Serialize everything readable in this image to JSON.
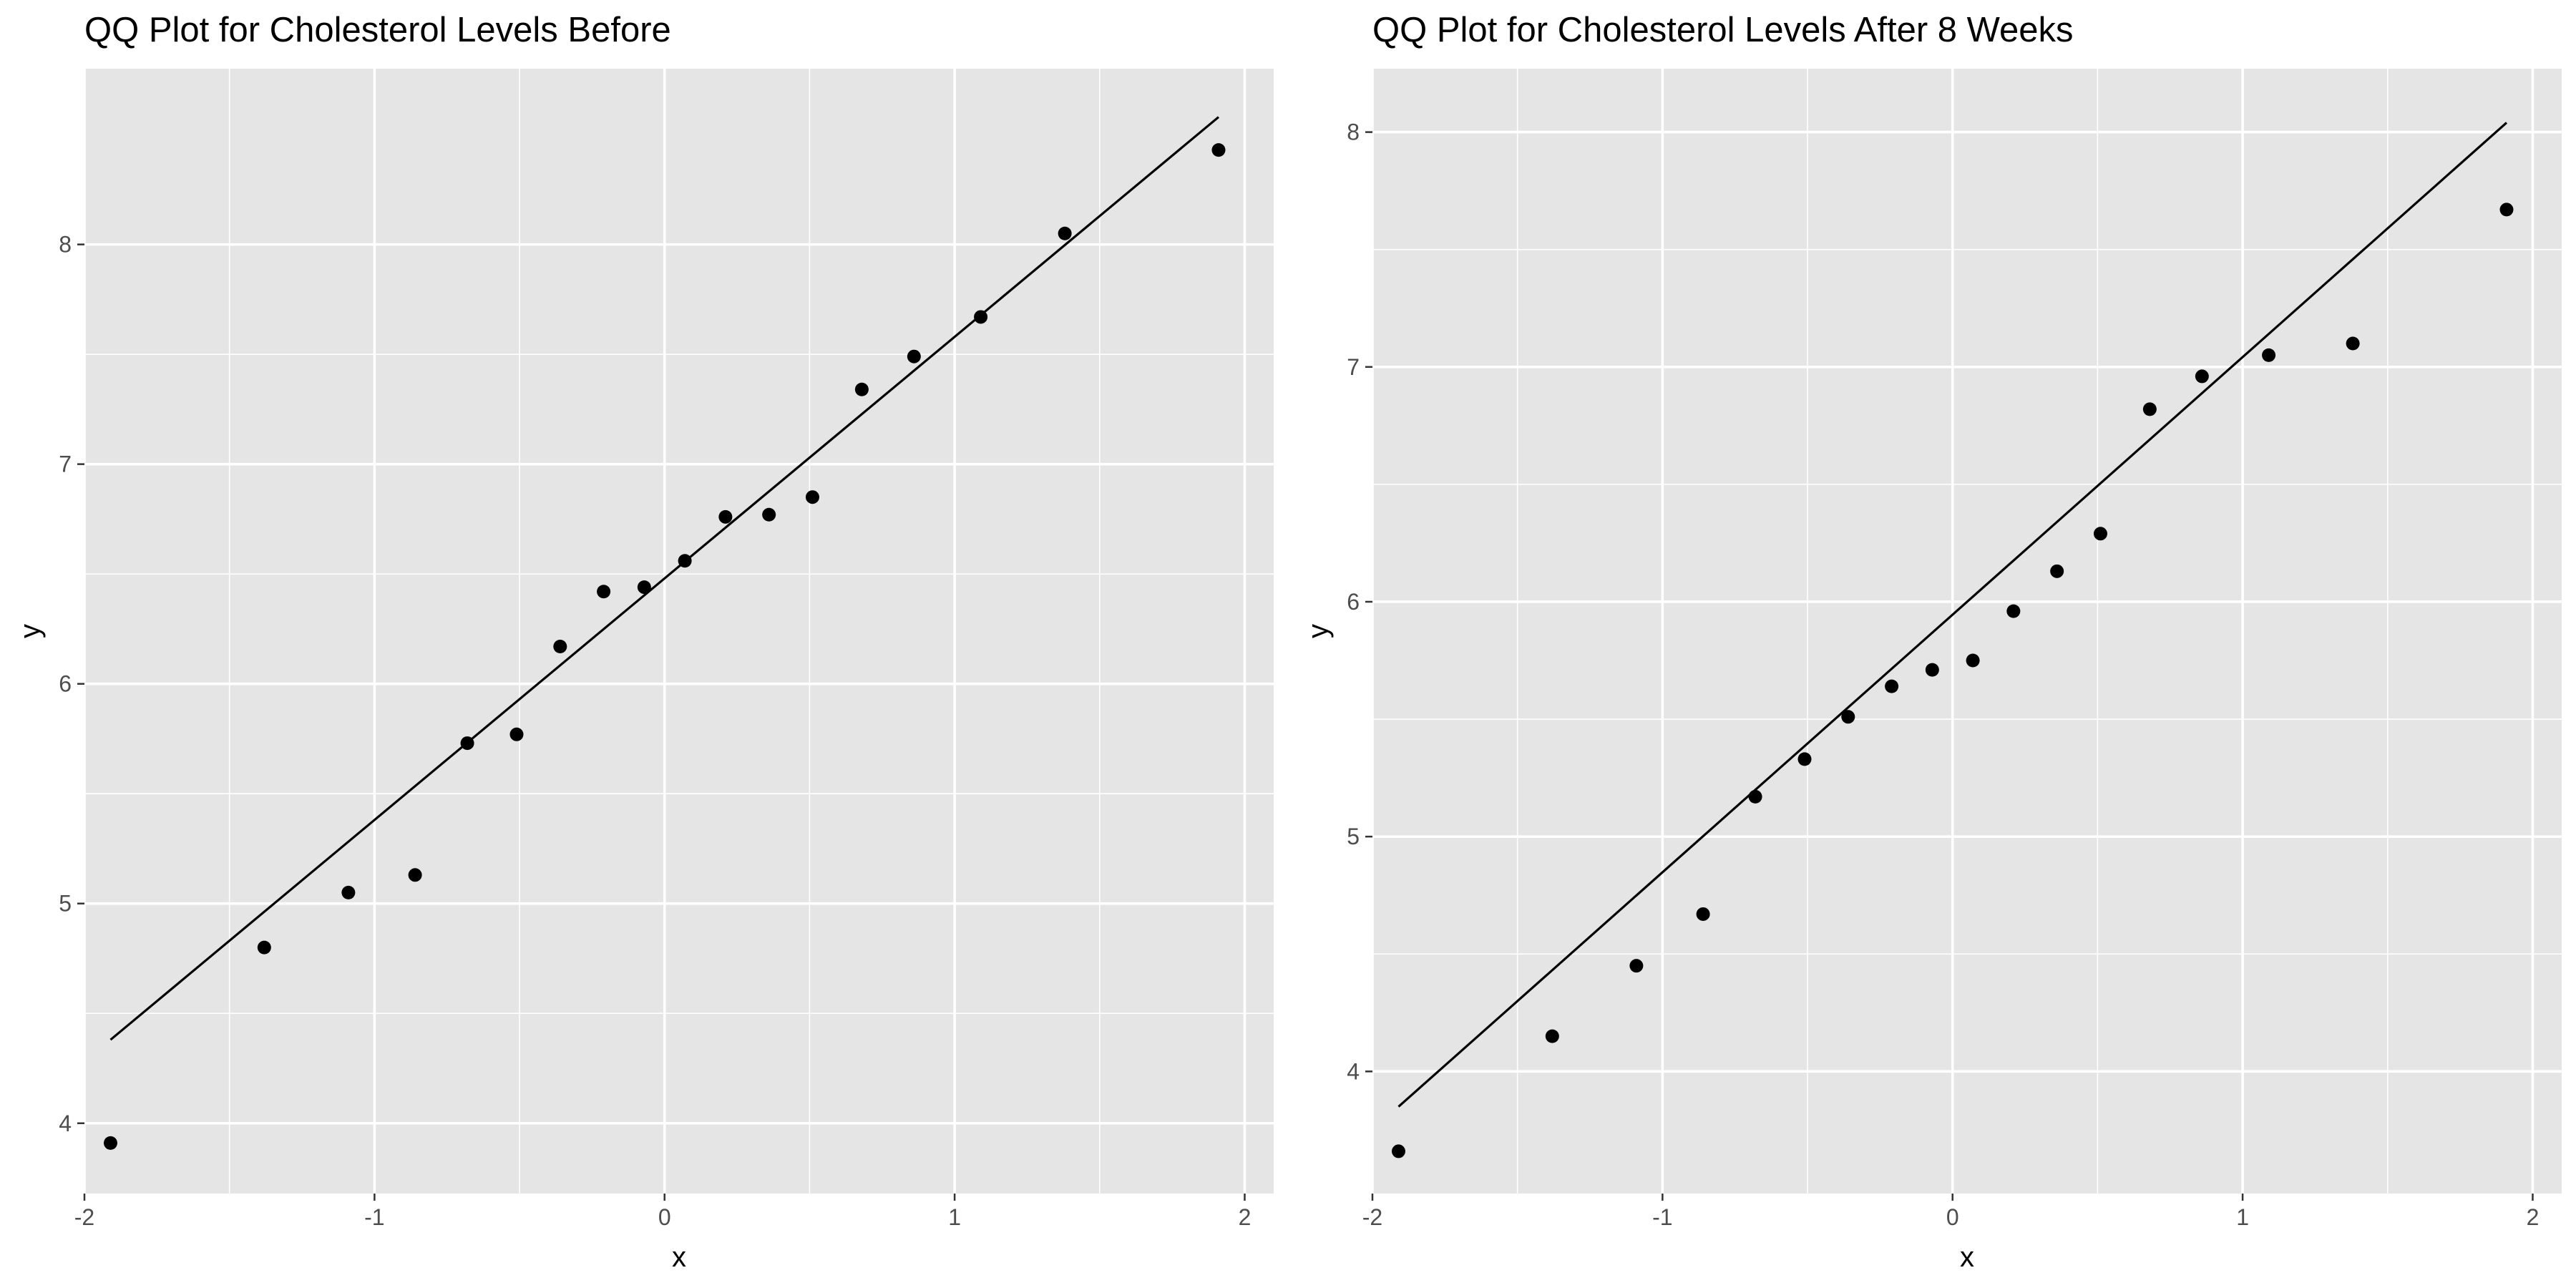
{
  "chart_data": [
    {
      "type": "scatter",
      "title": "QQ Plot for Cholesterol Levels Before",
      "xlabel": "x",
      "ylabel": "y",
      "xlim": [
        -2.0,
        2.1
      ],
      "ylim": [
        3.68,
        8.8
      ],
      "x_ticks": [
        -2,
        -1,
        0,
        1,
        2
      ],
      "x_tick_labels": [
        "-2",
        "-1",
        "0",
        "1",
        "2"
      ],
      "y_ticks": [
        4,
        5,
        6,
        7,
        8
      ],
      "y_tick_labels": [
        "4",
        "5",
        "6",
        "7",
        "8"
      ],
      "grid": true,
      "points": {
        "x": [
          -1.91,
          -1.38,
          -1.09,
          -0.86,
          -0.68,
          -0.51,
          -0.36,
          -0.21,
          -0.07,
          0.07,
          0.21,
          0.36,
          0.51,
          0.68,
          0.86,
          1.09,
          1.38,
          1.91
        ],
        "y": [
          3.91,
          4.8,
          5.05,
          5.13,
          5.73,
          5.77,
          6.17,
          6.42,
          6.44,
          6.56,
          6.76,
          6.77,
          6.85,
          7.34,
          7.49,
          7.67,
          8.05,
          8.43
        ]
      },
      "reference_line": {
        "x": [
          -1.91,
          1.91
        ],
        "y": [
          4.38,
          8.58
        ]
      }
    },
    {
      "type": "scatter",
      "title": "QQ Plot for Cholesterol Levels After 8 Weeks",
      "xlabel": "x",
      "ylabel": "y",
      "xlim": [
        -2.0,
        2.1
      ],
      "ylim": [
        3.48,
        8.27
      ],
      "x_ticks": [
        -2,
        -1,
        0,
        1,
        2
      ],
      "x_tick_labels": [
        "-2",
        "-1",
        "0",
        "1",
        "2"
      ],
      "y_ticks": [
        4,
        5,
        6,
        7,
        8
      ],
      "y_tick_labels": [
        "4",
        "5",
        "6",
        "7",
        "8"
      ],
      "grid": true,
      "points": {
        "x": [
          -1.91,
          -1.38,
          -1.09,
          -0.86,
          -0.68,
          -0.51,
          -0.36,
          -0.21,
          -0.07,
          0.07,
          0.21,
          0.36,
          0.51,
          0.68,
          0.86,
          1.09,
          1.38,
          1.91
        ],
        "y": [
          3.66,
          4.15,
          4.45,
          4.67,
          5.17,
          5.33,
          5.51,
          5.64,
          5.71,
          5.75,
          5.96,
          6.13,
          6.29,
          6.82,
          6.96,
          7.05,
          7.1,
          7.67
        ]
      },
      "reference_line": {
        "x": [
          -1.91,
          1.91
        ],
        "y": [
          3.85,
          8.04
        ]
      }
    }
  ],
  "colors": {
    "panel_background": "#e5e5e5",
    "grid": "#ffffff",
    "points": "#000000",
    "line": "#000000",
    "tick_text": "#4d4d4d"
  }
}
